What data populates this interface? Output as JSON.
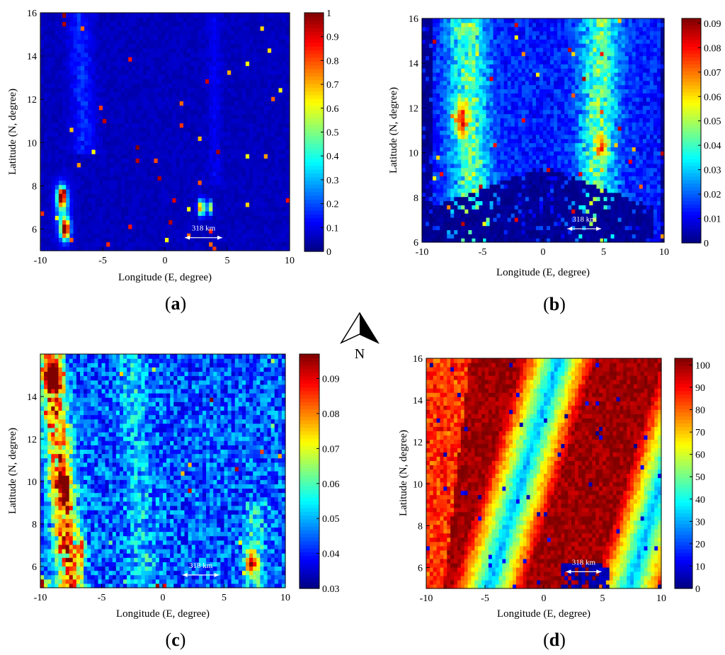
{
  "compass": {
    "label": "N"
  },
  "chart_data": [
    {
      "id": "a",
      "type": "heatmap",
      "panel_label": "a",
      "xlabel": "Longitude (E, degree)",
      "ylabel": "Latitude (N, degree)",
      "xlim": [
        -10,
        10
      ],
      "ylim": [
        5,
        16
      ],
      "xticks": [
        "-10",
        "-5",
        "0",
        "5",
        "10"
      ],
      "yticks": [
        "6",
        "8",
        "10",
        "12",
        "14",
        "16"
      ],
      "colorbar": {
        "min": 0,
        "max": 1,
        "ticks": [
          "0",
          "0.1",
          "0.2",
          "0.3",
          "0.4",
          "0.5",
          "0.6",
          "0.7",
          "0.8",
          "0.9",
          "1"
        ]
      },
      "scale_bar": {
        "label": "318 km",
        "x_start": 1.6,
        "x_end": 4.6,
        "y": 5.6
      },
      "field": {
        "base": 0.04,
        "noise": 0.04,
        "edge_low": null,
        "ridges": [
          {
            "x0": -6.5,
            "slope": -0.06,
            "width": 0.9,
            "amp": 0.1,
            "ymin": 9.5
          },
          {
            "x0": 4.0,
            "slope": 0,
            "width": 0.5,
            "amp": 0.05,
            "ymin": 8
          }
        ],
        "hotspots": [
          {
            "x": -8.3,
            "y": 7.5,
            "sx": 0.35,
            "sy": 0.45,
            "amp": 0.9
          },
          {
            "x": -8.0,
            "y": 6.0,
            "sx": 0.35,
            "sy": 0.45,
            "amp": 0.95
          },
          {
            "x": -8.2,
            "y": 6.8,
            "sx": 0.6,
            "sy": 1.2,
            "amp": 0.25
          },
          {
            "x": 2.9,
            "y": 7.0,
            "sx": 0.25,
            "sy": 0.35,
            "amp": 0.8
          },
          {
            "x": 3.6,
            "y": 7.0,
            "sx": 0.2,
            "sy": 0.3,
            "amp": 0.6
          }
        ]
      }
    },
    {
      "id": "b",
      "type": "heatmap",
      "panel_label": "b",
      "xlabel": "Longitude (E, degree)",
      "ylabel": "Latitude (N, degree)",
      "xlim": [
        -10,
        10
      ],
      "ylim": [
        6,
        16
      ],
      "xticks": [
        "-10",
        "-5",
        "0",
        "5",
        "10"
      ],
      "yticks": [
        "6",
        "8",
        "10",
        "12",
        "14",
        "16"
      ],
      "colorbar": {
        "min": 0,
        "max": 0.092,
        "ticks": [
          "0",
          "0.01",
          "0.02",
          "0.03",
          "0.04",
          "0.05",
          "0.06",
          "0.07",
          "0.08",
          "0.09"
        ]
      },
      "scale_bar": {
        "label": "318 km",
        "x_start": 2.0,
        "x_end": 4.8,
        "y": 6.6
      },
      "field": {
        "base": 0.008,
        "noise": 0.012,
        "edge_low": {
          "x_left": -9.0,
          "x_right": 9.6,
          "y_bottom": 7.6,
          "bowl": 1.8
        },
        "ridges": [
          {
            "x0": -6.0,
            "slope": -0.05,
            "width": 1.6,
            "amp": 0.028
          },
          {
            "x0": 4.5,
            "slope": 0.05,
            "width": 1.5,
            "amp": 0.03
          }
        ],
        "hotspots": [
          {
            "x": -6.8,
            "y": 11.5,
            "sx": 0.5,
            "sy": 0.7,
            "amp": 0.05
          },
          {
            "x": -5.0,
            "y": 7.0,
            "sx": 0.4,
            "sy": 0.3,
            "amp": 0.04
          },
          {
            "x": 4.8,
            "y": 10.3,
            "sx": 0.5,
            "sy": 0.5,
            "amp": 0.03
          }
        ]
      }
    },
    {
      "id": "c",
      "type": "heatmap",
      "panel_label": "c",
      "xlabel": "Longitude (E, degree)",
      "ylabel": "Latitude (N, degree)",
      "xlim": [
        -10,
        10
      ],
      "ylim": [
        5,
        16
      ],
      "xticks": [
        "-10",
        "-5",
        "0",
        "5",
        "10"
      ],
      "yticks": [
        "6",
        "8",
        "10",
        "12",
        "14"
      ],
      "colorbar": {
        "min": 0.03,
        "max": 0.097,
        "ticks": [
          "0.03",
          "0.04",
          "0.05",
          "0.06",
          "0.07",
          "0.08",
          "0.09"
        ]
      },
      "scale_bar": {
        "label": "318 km",
        "x_start": 1.6,
        "x_end": 4.6,
        "y": 5.6
      },
      "field": {
        "base": 0.035,
        "noise": 0.018,
        "edge_low": null,
        "ridges": [
          {
            "x0": -8.3,
            "slope": -0.15,
            "width": 1.0,
            "amp": 0.04
          },
          {
            "x0": -2.0,
            "slope": -0.1,
            "width": 1.2,
            "amp": 0.008
          },
          {
            "x0": 7.5,
            "slope": -0.05,
            "width": 0.8,
            "amp": 0.012,
            "ymax": 9
          }
        ],
        "hotspots": [
          {
            "x": -9.0,
            "y": 15.0,
            "sx": 0.5,
            "sy": 0.6,
            "amp": 0.05
          },
          {
            "x": -8.0,
            "y": 9.8,
            "sx": 0.4,
            "sy": 0.6,
            "amp": 0.04
          },
          {
            "x": -6.7,
            "y": 6.8,
            "sx": 0.3,
            "sy": 0.8,
            "amp": 0.03
          },
          {
            "x": 7.2,
            "y": 6.2,
            "sx": 0.5,
            "sy": 0.6,
            "amp": 0.04
          },
          {
            "x": -9.8,
            "y": 5.2,
            "sx": 0.3,
            "sy": 0.3,
            "amp": 0.05
          }
        ]
      }
    },
    {
      "id": "d",
      "type": "heatmap",
      "panel_label": "d",
      "xlabel": "Longitude (E, degree)",
      "ylabel": "Latitude (N, degree)",
      "xlim": [
        -10,
        10
      ],
      "ylim": [
        5,
        16
      ],
      "xticks": [
        "-10",
        "-5",
        "0",
        "5",
        "10"
      ],
      "yticks": [
        "6",
        "8",
        "10",
        "12",
        "14",
        "16"
      ],
      "colorbar": {
        "min": 0,
        "max": 103,
        "ticks": [
          "0",
          "10",
          "20",
          "30",
          "40",
          "50",
          "60",
          "70",
          "80",
          "90",
          "100"
        ]
      },
      "scale_bar": {
        "label": "318 km",
        "x_start": 1.9,
        "x_end": 4.9,
        "y": 5.8
      },
      "stripes": {
        "slope": -0.5,
        "valleys": [
          -2.0,
          10.0
        ],
        "period": 12.0,
        "floor": 30,
        "peak": 100
      }
    }
  ]
}
